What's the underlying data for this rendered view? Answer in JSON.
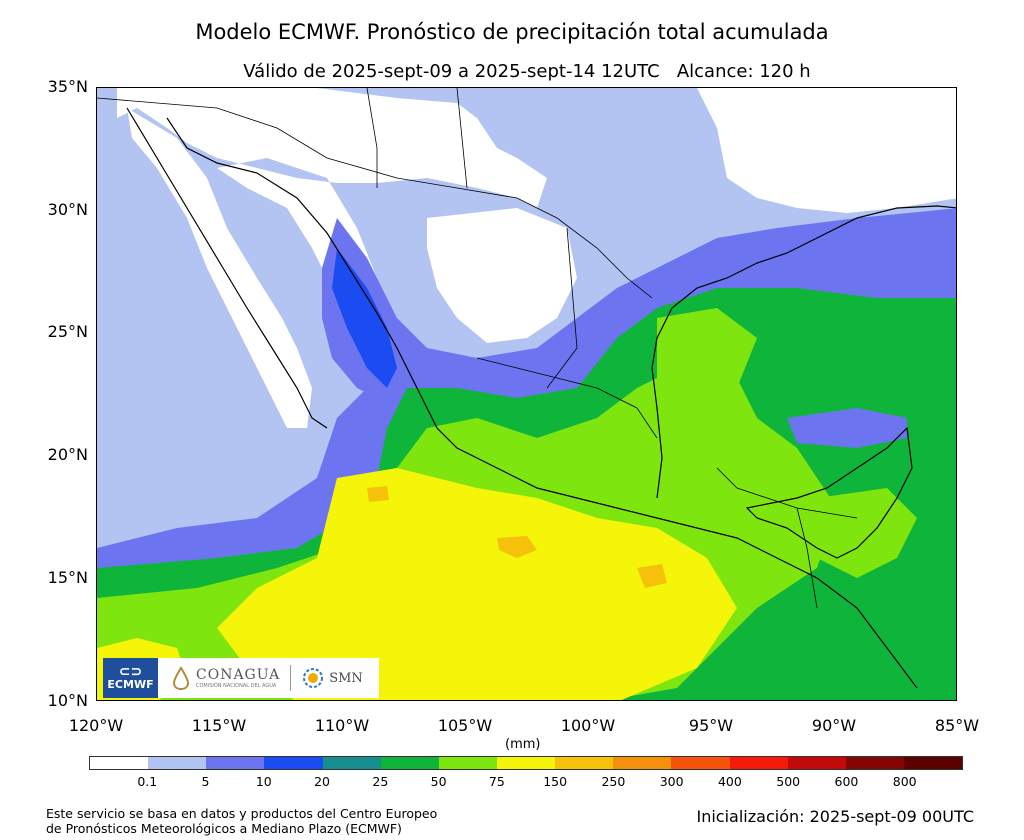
{
  "header": {
    "title": "Modelo ECMWF. Pronóstico de precipitación total acumulada",
    "subtitle": "Válido de 2025-sept-09 a 2025-sept-14 12UTC   Alcance: 120 h"
  },
  "map": {
    "lon_range": [
      -120,
      -85
    ],
    "lat_range": [
      10,
      35
    ],
    "lat_ticks": [
      "35°N",
      "30°N",
      "25°N",
      "20°N",
      "15°N",
      "10°N"
    ],
    "lon_ticks": [
      "120°W",
      "115°W",
      "110°W",
      "105°W",
      "100°W",
      "95°W",
      "90°W",
      "85°W"
    ],
    "background_color": "#b3c3f2",
    "land_dry_color": "#ffffff",
    "coastline_color": "#000000"
  },
  "colorbar": {
    "unit": "(mm)",
    "labels": [
      "0.1",
      "5",
      "10",
      "20",
      "25",
      "50",
      "75",
      "150",
      "250",
      "300",
      "400",
      "500",
      "600",
      "800"
    ],
    "colors": [
      "#ffffff",
      "#b3c3f2",
      "#6d74f0",
      "#1b4cf2",
      "#178f8f",
      "#0fb53a",
      "#7ee60e",
      "#f5f50a",
      "#f5c10a",
      "#f5900a",
      "#f5520a",
      "#f51a0a",
      "#c20a0a",
      "#850505",
      "#5c0000"
    ]
  },
  "logos": {
    "ecmwf": "ECMWF",
    "conagua": "CONAGUA",
    "conagua_sub": "COMISIÓN NACIONAL DEL AGUA",
    "smn": "SMN"
  },
  "footer": {
    "credit_line1": "Este servicio se basa en datos y productos del Centro Europeo",
    "credit_line2": "de Pronósticos Meteorológicos a Mediano Plazo (ECMWF)",
    "init": "Inicialización: 2025-sept-09 00UTC"
  }
}
